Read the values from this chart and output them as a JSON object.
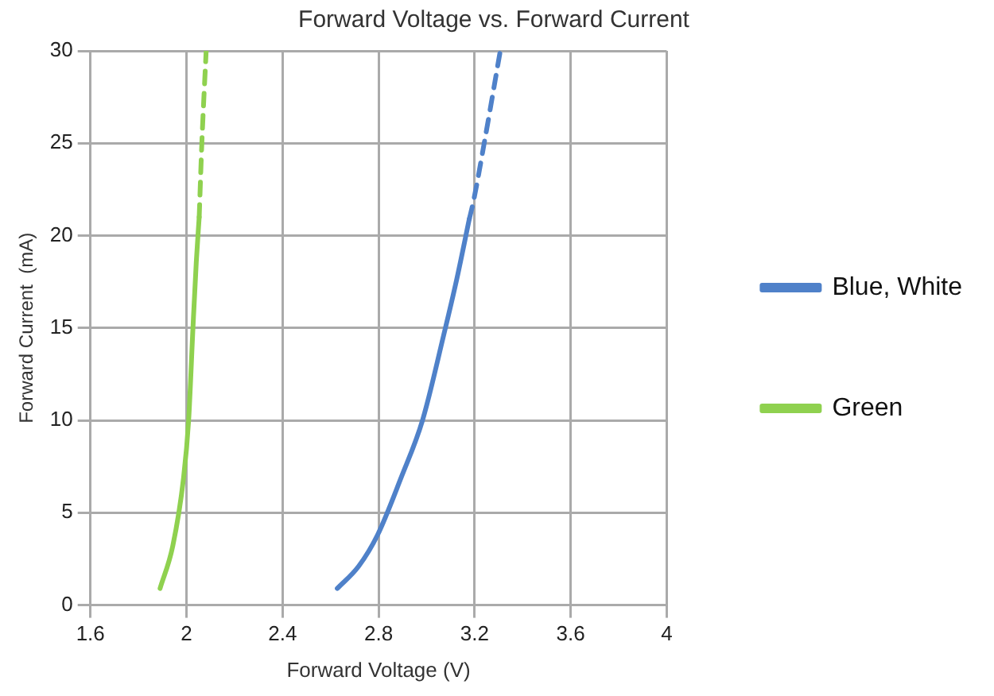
{
  "chart_data": {
    "type": "line",
    "title": "Forward Voltage vs. Forward Current",
    "xlabel": "Forward Voltage (V)",
    "ylabel": "Forward Current  (mA)",
    "xlim": [
      1.6,
      4
    ],
    "xticks": [
      1.6,
      2,
      2.4,
      2.8,
      3.2,
      3.6,
      4
    ],
    "ylim": [
      0,
      30
    ],
    "yticks": [
      0,
      5,
      10,
      15,
      20,
      25,
      30
    ],
    "grid": true,
    "legend": "right",
    "marker": "none",
    "series": [
      {
        "name": "Blue, White",
        "color": "#4f81c9",
        "line_style": "solid",
        "x": [
          2.628,
          2.717,
          2.796,
          2.894,
          2.983,
          3.071,
          3.125,
          3.178
        ],
        "values": [
          0.9,
          2.1,
          3.8,
          6.9,
          10,
          14.6,
          17.6,
          20.9
        ]
      },
      {
        "color": "#4f81c9",
        "line_style": "dashed",
        "x": [
          3.178,
          3.196,
          3.24,
          3.307
        ],
        "values": [
          20.9,
          21.9,
          25,
          30
        ]
      },
      {
        "name": "Green",
        "color": "#8fd14f",
        "line_style": "solid",
        "x": [
          1.89,
          1.943,
          1.988,
          2.009,
          2.027,
          2.041,
          2.053
        ],
        "values": [
          0.9,
          3.2,
          6.9,
          10,
          15,
          18.6,
          21
        ]
      },
      {
        "color": "#8fd14f",
        "line_style": "dashed",
        "x": [
          2.053,
          2.064,
          2.082
        ],
        "values": [
          21,
          25,
          30
        ]
      }
    ]
  }
}
